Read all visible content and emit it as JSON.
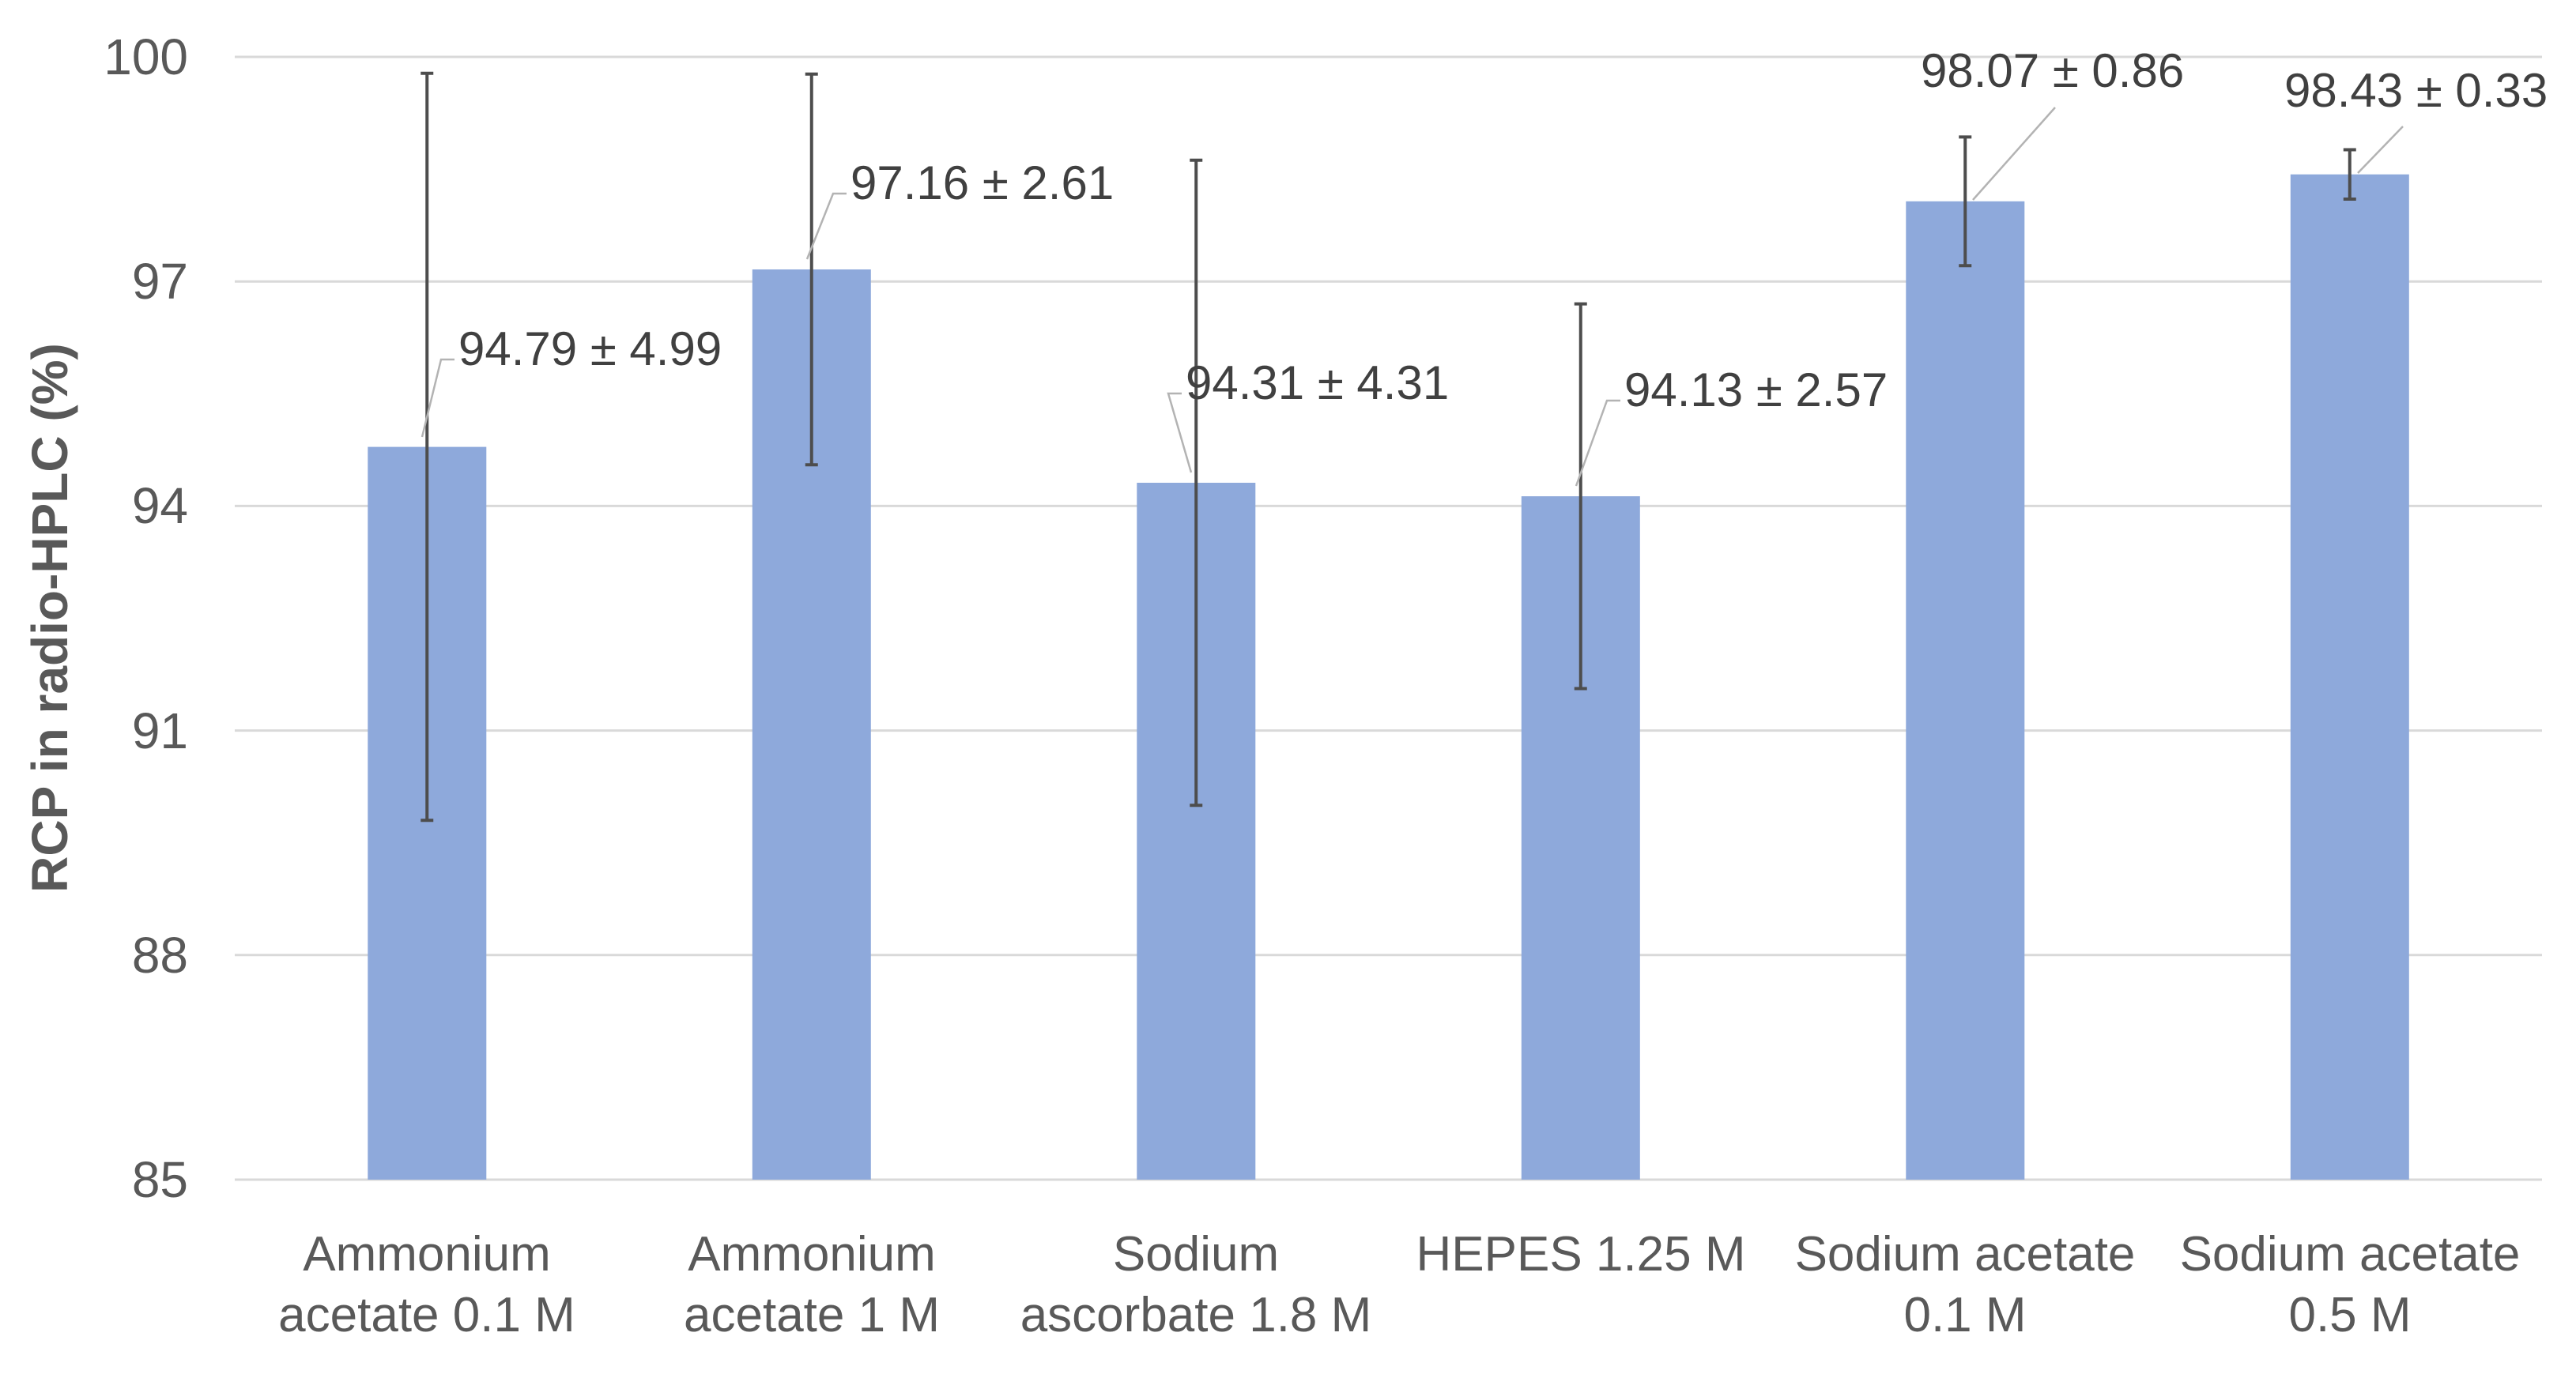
{
  "chart_data": {
    "type": "bar",
    "title": "",
    "xlabel": "",
    "ylabel": "RCP in radio-HPLC (%)",
    "ylim": [
      85,
      100
    ],
    "yticks": [
      100,
      97,
      94,
      91,
      88,
      85
    ],
    "grid": "horizontal",
    "legend_position": "none",
    "background": "#ffffff",
    "colors": {
      "bar": "#8ea9db",
      "error_bar": "#4d4d4d",
      "gridline": "#d9d9d9",
      "axis_text": "#595959",
      "data_label_text": "#404040",
      "leader_line": "#b3b3b3"
    },
    "categories": [
      {
        "label": "Ammonium acetate 0.1 M",
        "line1": "Ammonium",
        "line2": "acetate 0.1 M"
      },
      {
        "label": "Ammonium acetate 1 M",
        "line1": "Ammonium",
        "line2": "acetate 1 M"
      },
      {
        "label": "Sodium ascorbate 1.8 M",
        "line1": "Sodium",
        "line2": "ascorbate 1.8 M"
      },
      {
        "label": "HEPES 1.25 M",
        "line1": "HEPES 1.25 M",
        "line2": ""
      },
      {
        "label": "Sodium acetate 0.1 M",
        "line1": "Sodium acetate",
        "line2": "0.1 M"
      },
      {
        "label": "Sodium acetate 0.5 M",
        "line1": "Sodium acetate",
        "line2": "0.5 M"
      }
    ],
    "series": [
      {
        "name": "RCP in radio-HPLC (%)",
        "values": [
          94.79,
          97.16,
          94.31,
          94.13,
          98.07,
          98.43
        ],
        "errors": [
          4.99,
          2.61,
          4.31,
          2.57,
          0.86,
          0.33
        ]
      }
    ],
    "data_labels": [
      "94.79 ± 4.99",
      "97.16 ± 2.61",
      "94.31 ± 4.31",
      "94.13 ± 2.57",
      "98.07 ± 0.86",
      "98.43 ± 0.33"
    ]
  }
}
